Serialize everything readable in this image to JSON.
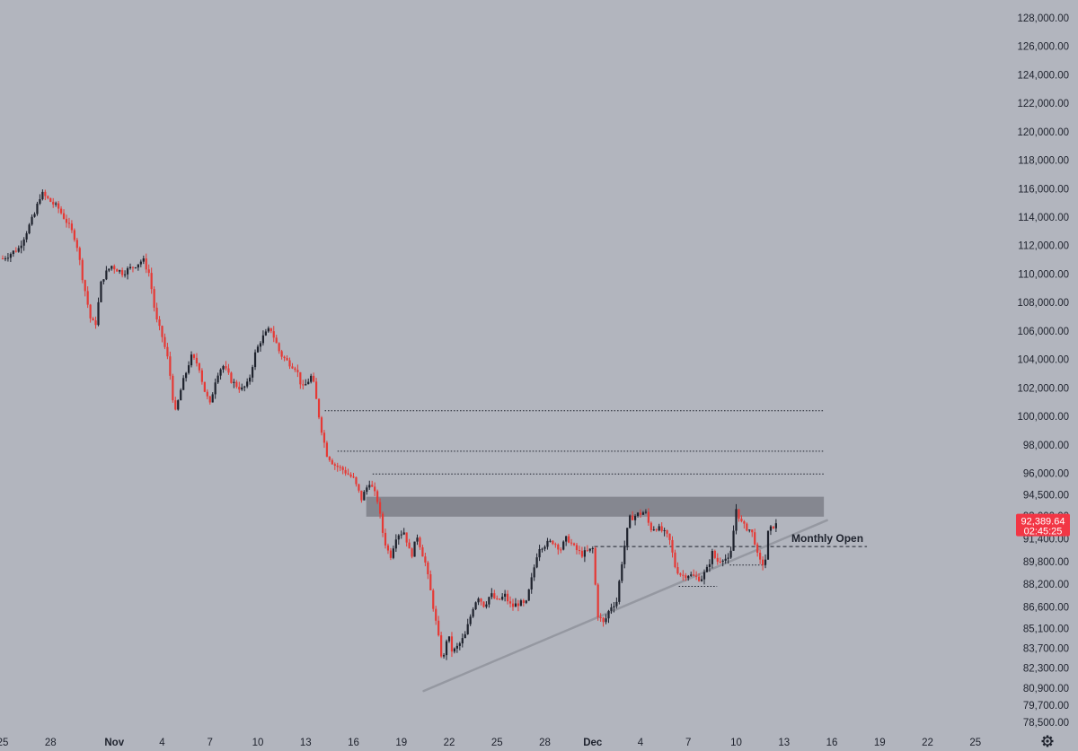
{
  "chart_data": {
    "type": "candlestick",
    "colors": {
      "background": "#b2b5be",
      "up": "#1e222d",
      "down": "#e53935",
      "zone": "#7c7f88",
      "trendline": "#9598a1",
      "price_tag": "#f23645"
    },
    "y_axis": {
      "min": 77500,
      "max": 129500,
      "ticks": [
        78500,
        79700,
        80900,
        82300,
        83700,
        85100,
        86600,
        88200,
        89800,
        91400,
        93000,
        94500,
        96000,
        98000,
        100000,
        102000,
        104000,
        106000,
        108000,
        110000,
        112000,
        114000,
        116000,
        118000,
        120000,
        122000,
        124000,
        126000,
        128000
      ],
      "tick_labels": [
        "78,500.00",
        "79,700.00",
        "80,900.00",
        "82,300.00",
        "83,700.00",
        "85,100.00",
        "86,600.00",
        "88,200.00",
        "89,800.00",
        "91,400.00",
        "93,000.00",
        "94,500.00",
        "96,000.00",
        "98,000.00",
        "100,000.00",
        "102,000.00",
        "104,000.00",
        "106,000.00",
        "108,000.00",
        "110,000.00",
        "112,000.00",
        "114,000.00",
        "116,000.00",
        "118,000.00",
        "120,000.00",
        "122,000.00",
        "124,000.00",
        "126,000.00",
        "128,000.00"
      ]
    },
    "x_axis": {
      "ticks": [
        {
          "day": -3,
          "label": "25"
        },
        {
          "day": 0,
          "label": "28"
        },
        {
          "day": 4,
          "label": "Nov"
        },
        {
          "day": 7,
          "label": "4"
        },
        {
          "day": 10,
          "label": "7"
        },
        {
          "day": 13,
          "label": "10"
        },
        {
          "day": 16,
          "label": "13"
        },
        {
          "day": 19,
          "label": "16"
        },
        {
          "day": 22,
          "label": "19"
        },
        {
          "day": 25,
          "label": "22"
        },
        {
          "day": 28,
          "label": "25"
        },
        {
          "day": 31,
          "label": "28"
        },
        {
          "day": 34,
          "label": "Dec"
        },
        {
          "day": 37,
          "label": "4"
        },
        {
          "day": 40,
          "label": "7"
        },
        {
          "day": 43,
          "label": "10"
        },
        {
          "day": 46,
          "label": "13"
        },
        {
          "day": 49,
          "label": "16"
        },
        {
          "day": 52,
          "label": "19"
        },
        {
          "day": 55,
          "label": "22"
        },
        {
          "day": 58,
          "label": "25"
        }
      ]
    },
    "series_close": [
      [
        -3.0,
        111100
      ],
      [
        -2.0,
        111800
      ],
      [
        -1.0,
        114200
      ],
      [
        -0.6,
        115700
      ],
      [
        0.0,
        115100
      ],
      [
        0.5,
        114600
      ],
      [
        1.0,
        113700
      ],
      [
        1.6,
        112400
      ],
      [
        2.0,
        109800
      ],
      [
        2.5,
        106900
      ],
      [
        2.8,
        106300
      ],
      [
        3.2,
        109600
      ],
      [
        3.8,
        110600
      ],
      [
        4.5,
        110100
      ],
      [
        5.0,
        110400
      ],
      [
        5.8,
        111000
      ],
      [
        6.2,
        110000
      ],
      [
        6.6,
        106900
      ],
      [
        7.0,
        105600
      ],
      [
        7.4,
        103800
      ],
      [
        7.8,
        100100
      ],
      [
        8.2,
        102000
      ],
      [
        8.8,
        104200
      ],
      [
        9.3,
        103600
      ],
      [
        9.6,
        102000
      ],
      [
        10.0,
        100800
      ],
      [
        10.4,
        102900
      ],
      [
        10.8,
        103600
      ],
      [
        11.4,
        102400
      ],
      [
        12.0,
        101900
      ],
      [
        12.4,
        102300
      ],
      [
        12.8,
        104300
      ],
      [
        13.2,
        105400
      ],
      [
        13.8,
        106200
      ],
      [
        14.4,
        104400
      ],
      [
        14.8,
        103900
      ],
      [
        15.4,
        103400
      ],
      [
        15.8,
        101900
      ],
      [
        16.4,
        102900
      ],
      [
        16.9,
        99600
      ],
      [
        17.3,
        97400
      ],
      [
        17.8,
        96600
      ],
      [
        18.4,
        96200
      ],
      [
        19.0,
        95600
      ],
      [
        19.5,
        94200
      ],
      [
        20.0,
        95400
      ],
      [
        20.5,
        94100
      ],
      [
        20.9,
        91400
      ],
      [
        21.3,
        90100
      ],
      [
        21.7,
        91700
      ],
      [
        22.2,
        91900
      ],
      [
        22.6,
        90100
      ],
      [
        23.0,
        91600
      ],
      [
        23.5,
        89700
      ],
      [
        23.9,
        87300
      ],
      [
        24.2,
        85300
      ],
      [
        24.6,
        82600
      ],
      [
        24.9,
        84800
      ],
      [
        25.2,
        83400
      ],
      [
        25.6,
        83900
      ],
      [
        26.0,
        84600
      ],
      [
        26.5,
        86600
      ],
      [
        26.8,
        87400
      ],
      [
        27.2,
        86700
      ],
      [
        27.6,
        87500
      ],
      [
        28.0,
        87000
      ],
      [
        28.5,
        87400
      ],
      [
        28.9,
        86600
      ],
      [
        29.4,
        86900
      ],
      [
        29.8,
        86700
      ],
      [
        30.2,
        88700
      ],
      [
        30.6,
        90800
      ],
      [
        31.0,
        91000
      ],
      [
        31.5,
        91200
      ],
      [
        32.0,
        90700
      ],
      [
        32.4,
        91500
      ],
      [
        32.8,
        90800
      ],
      [
        33.3,
        90300
      ],
      [
        33.7,
        90500
      ],
      [
        34.0,
        90700
      ],
      [
        34.3,
        86100
      ],
      [
        34.7,
        85400
      ],
      [
        35.1,
        86600
      ],
      [
        35.5,
        87000
      ],
      [
        35.9,
        90300
      ],
      [
        36.3,
        92800
      ],
      [
        36.8,
        93100
      ],
      [
        37.3,
        93300
      ],
      [
        37.6,
        92100
      ],
      [
        38.0,
        92200
      ],
      [
        38.4,
        91900
      ],
      [
        38.8,
        91400
      ],
      [
        39.2,
        89300
      ],
      [
        39.6,
        88800
      ],
      [
        40.0,
        88900
      ],
      [
        40.4,
        88700
      ],
      [
        40.8,
        88600
      ],
      [
        41.2,
        89300
      ],
      [
        41.5,
        90400
      ],
      [
        41.8,
        89800
      ],
      [
        42.2,
        90100
      ],
      [
        42.6,
        89800
      ],
      [
        43.0,
        93500
      ],
      [
        43.4,
        92300
      ],
      [
        43.8,
        92100
      ],
      [
        44.1,
        91600
      ],
      [
        44.4,
        89800
      ],
      [
        44.8,
        89600
      ],
      [
        45.0,
        91800
      ],
      [
        45.3,
        92300
      ],
      [
        45.6,
        92400
      ]
    ],
    "price_levels": [
      {
        "y": 100400,
        "x_from": 17.2,
        "x_to": 48.5,
        "style": "dotted"
      },
      {
        "y": 97550,
        "x_from": 18.0,
        "x_to": 48.5,
        "style": "dotted"
      },
      {
        "y": 95950,
        "x_from": 20.2,
        "x_to": 48.5,
        "style": "dotted"
      },
      {
        "y": 90850,
        "x_from": 34.1,
        "x_to": 51.2,
        "style": "dashed",
        "label": "Monthly Open"
      },
      {
        "y": 88050,
        "x_from": 39.4,
        "x_to": 41.8,
        "style": "dotted"
      },
      {
        "y": 89550,
        "x_from": 42.6,
        "x_to": 44.8,
        "style": "dotted"
      }
    ],
    "zone": {
      "y_low": 92950,
      "y_high": 94350,
      "x_from": 19.8,
      "x_to": 48.5
    },
    "trendline": {
      "x1": 23.4,
      "y1": 80700,
      "x2": 48.7,
      "y2": 92700
    },
    "last_price": {
      "value": "92,389.64",
      "countdown": "02:45:25"
    }
  }
}
